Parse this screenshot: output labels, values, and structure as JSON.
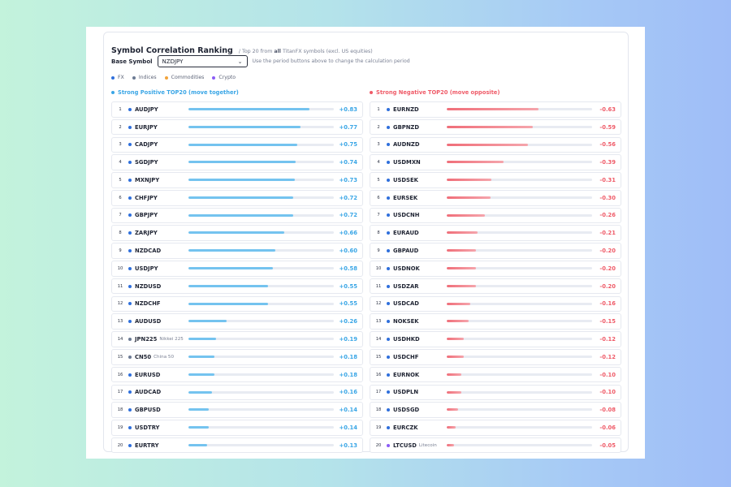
{
  "header": {
    "title": "Symbol Correlation Ranking",
    "subtitle_pre": "/ Top 20 from",
    "subtitle_bold": "all",
    "subtitle_post": "TitanFX symbols (excl. US equities)"
  },
  "base": {
    "label": "Base Symbol",
    "value": "NZDJPY",
    "hint": "Use the period buttons above to change the calculation period"
  },
  "legend": [
    {
      "label": "FX",
      "color": "#2f6fdc"
    },
    {
      "label": "Indices",
      "color": "#6b7a93"
    },
    {
      "label": "Commodities",
      "color": "#f2a33a"
    },
    {
      "label": "Crypto",
      "color": "#8b5cf6"
    }
  ],
  "positive": {
    "title": "Strong Positive TOP20 (move together)",
    "color": "#3aa6e6",
    "items": [
      {
        "rank": "1",
        "symbol": "AUDJPY",
        "sub": "",
        "value": "+0.83",
        "corr": 0.83,
        "category": "FX"
      },
      {
        "rank": "2",
        "symbol": "EURJPY",
        "sub": "",
        "value": "+0.77",
        "corr": 0.77,
        "category": "FX"
      },
      {
        "rank": "3",
        "symbol": "CADJPY",
        "sub": "",
        "value": "+0.75",
        "corr": 0.75,
        "category": "FX"
      },
      {
        "rank": "4",
        "symbol": "SGDJPY",
        "sub": "",
        "value": "+0.74",
        "corr": 0.74,
        "category": "FX"
      },
      {
        "rank": "5",
        "symbol": "MXNJPY",
        "sub": "",
        "value": "+0.73",
        "corr": 0.73,
        "category": "FX"
      },
      {
        "rank": "6",
        "symbol": "CHFJPY",
        "sub": "",
        "value": "+0.72",
        "corr": 0.72,
        "category": "FX"
      },
      {
        "rank": "7",
        "symbol": "GBPJPY",
        "sub": "",
        "value": "+0.72",
        "corr": 0.72,
        "category": "FX"
      },
      {
        "rank": "8",
        "symbol": "ZARJPY",
        "sub": "",
        "value": "+0.66",
        "corr": 0.66,
        "category": "FX"
      },
      {
        "rank": "9",
        "symbol": "NZDCAD",
        "sub": "",
        "value": "+0.60",
        "corr": 0.6,
        "category": "FX"
      },
      {
        "rank": "10",
        "symbol": "USDJPY",
        "sub": "",
        "value": "+0.58",
        "corr": 0.58,
        "category": "FX"
      },
      {
        "rank": "11",
        "symbol": "NZDUSD",
        "sub": "",
        "value": "+0.55",
        "corr": 0.55,
        "category": "FX"
      },
      {
        "rank": "12",
        "symbol": "NZDCHF",
        "sub": "",
        "value": "+0.55",
        "corr": 0.55,
        "category": "FX"
      },
      {
        "rank": "13",
        "symbol": "AUDUSD",
        "sub": "",
        "value": "+0.26",
        "corr": 0.26,
        "category": "FX"
      },
      {
        "rank": "14",
        "symbol": "JPN225",
        "sub": "Nikkei 225",
        "value": "+0.19",
        "corr": 0.19,
        "category": "Indices"
      },
      {
        "rank": "15",
        "symbol": "CN50",
        "sub": "China 50",
        "value": "+0.18",
        "corr": 0.18,
        "category": "Indices"
      },
      {
        "rank": "16",
        "symbol": "EURUSD",
        "sub": "",
        "value": "+0.18",
        "corr": 0.18,
        "category": "FX"
      },
      {
        "rank": "17",
        "symbol": "AUDCAD",
        "sub": "",
        "value": "+0.16",
        "corr": 0.16,
        "category": "FX"
      },
      {
        "rank": "18",
        "symbol": "GBPUSD",
        "sub": "",
        "value": "+0.14",
        "corr": 0.14,
        "category": "FX"
      },
      {
        "rank": "19",
        "symbol": "USDTRY",
        "sub": "",
        "value": "+0.14",
        "corr": 0.14,
        "category": "FX"
      },
      {
        "rank": "20",
        "symbol": "EURTRY",
        "sub": "",
        "value": "+0.13",
        "corr": 0.13,
        "category": "FX"
      }
    ]
  },
  "negative": {
    "title": "Strong Negative TOP20 (move opposite)",
    "color": "#ef5b68",
    "items": [
      {
        "rank": "1",
        "symbol": "EURNZD",
        "sub": "",
        "value": "-0.63",
        "corr": 0.63,
        "category": "FX"
      },
      {
        "rank": "2",
        "symbol": "GBPNZD",
        "sub": "",
        "value": "-0.59",
        "corr": 0.59,
        "category": "FX"
      },
      {
        "rank": "3",
        "symbol": "AUDNZD",
        "sub": "",
        "value": "-0.56",
        "corr": 0.56,
        "category": "FX"
      },
      {
        "rank": "4",
        "symbol": "USDMXN",
        "sub": "",
        "value": "-0.39",
        "corr": 0.39,
        "category": "FX"
      },
      {
        "rank": "5",
        "symbol": "USDSEK",
        "sub": "",
        "value": "-0.31",
        "corr": 0.31,
        "category": "FX"
      },
      {
        "rank": "6",
        "symbol": "EURSEK",
        "sub": "",
        "value": "-0.30",
        "corr": 0.3,
        "category": "FX"
      },
      {
        "rank": "7",
        "symbol": "USDCNH",
        "sub": "",
        "value": "-0.26",
        "corr": 0.26,
        "category": "FX"
      },
      {
        "rank": "8",
        "symbol": "EURAUD",
        "sub": "",
        "value": "-0.21",
        "corr": 0.21,
        "category": "FX"
      },
      {
        "rank": "9",
        "symbol": "GBPAUD",
        "sub": "",
        "value": "-0.20",
        "corr": 0.2,
        "category": "FX"
      },
      {
        "rank": "10",
        "symbol": "USDNOK",
        "sub": "",
        "value": "-0.20",
        "corr": 0.2,
        "category": "FX"
      },
      {
        "rank": "11",
        "symbol": "USDZAR",
        "sub": "",
        "value": "-0.20",
        "corr": 0.2,
        "category": "FX"
      },
      {
        "rank": "12",
        "symbol": "USDCAD",
        "sub": "",
        "value": "-0.16",
        "corr": 0.16,
        "category": "FX"
      },
      {
        "rank": "13",
        "symbol": "NOKSEK",
        "sub": "",
        "value": "-0.15",
        "corr": 0.15,
        "category": "FX"
      },
      {
        "rank": "14",
        "symbol": "USDHKD",
        "sub": "",
        "value": "-0.12",
        "corr": 0.12,
        "category": "FX"
      },
      {
        "rank": "15",
        "symbol": "USDCHF",
        "sub": "",
        "value": "-0.12",
        "corr": 0.12,
        "category": "FX"
      },
      {
        "rank": "16",
        "symbol": "EURNOK",
        "sub": "",
        "value": "-0.10",
        "corr": 0.1,
        "category": "FX"
      },
      {
        "rank": "17",
        "symbol": "USDPLN",
        "sub": "",
        "value": "-0.10",
        "corr": 0.1,
        "category": "FX"
      },
      {
        "rank": "18",
        "symbol": "USDSGD",
        "sub": "",
        "value": "-0.08",
        "corr": 0.08,
        "category": "FX"
      },
      {
        "rank": "19",
        "symbol": "EURCZK",
        "sub": "",
        "value": "-0.06",
        "corr": 0.06,
        "category": "FX"
      },
      {
        "rank": "20",
        "symbol": "LTCUSD",
        "sub": "Litecoin",
        "value": "-0.05",
        "corr": 0.05,
        "category": "Crypto"
      }
    ]
  }
}
